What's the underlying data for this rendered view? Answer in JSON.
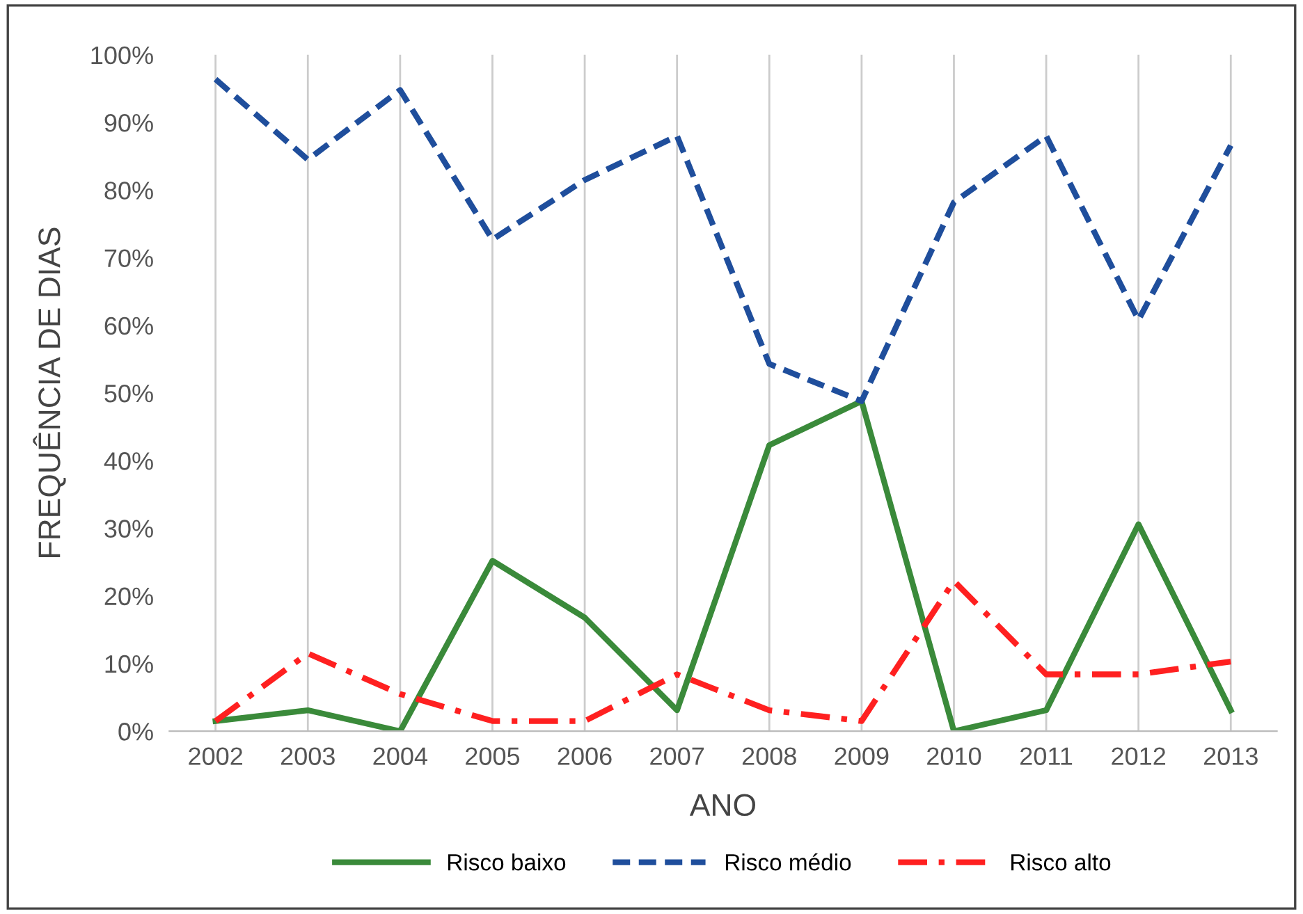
{
  "chart_data": {
    "type": "line",
    "xlabel": "ANO",
    "ylabel": "FREQUÊNCIA DE DIAS",
    "categories": [
      "2002",
      "2003",
      "2004",
      "2005",
      "2006",
      "2007",
      "2008",
      "2009",
      "2010",
      "2011",
      "2012",
      "2013"
    ],
    "series": [
      {
        "name": "Risco baixo",
        "color": "#3a8a3a",
        "line_style": "solid",
        "values": [
          1.5,
          3.1,
          0,
          25.2,
          16.8,
          3.1,
          42.3,
          48.8,
          0,
          3.1,
          30.6,
          3.1
        ]
      },
      {
        "name": "Risco médio",
        "color": "#1f4e9c",
        "line_style": "dashed",
        "values": [
          96.4,
          84.5,
          94.8,
          72.7,
          81.5,
          88,
          54.3,
          48.8,
          78.2,
          88,
          60.8,
          86.6
        ]
      },
      {
        "name": "Risco alto",
        "color": "#ff2020",
        "line_style": "dashdot",
        "values": [
          1.5,
          11.5,
          5.5,
          1.5,
          1.5,
          8.4,
          3.1,
          1.5,
          22.2,
          8.4,
          8.4,
          10.3
        ]
      }
    ],
    "ylim": [
      0,
      100
    ],
    "yticks": [
      {
        "value": 0,
        "label": "0%"
      },
      {
        "value": 10,
        "label": "10%"
      },
      {
        "value": 20,
        "label": "20%"
      },
      {
        "value": 30,
        "label": "30%"
      },
      {
        "value": 40,
        "label": "40%"
      },
      {
        "value": 50,
        "label": "50%"
      },
      {
        "value": 60,
        "label": "60%"
      },
      {
        "value": 70,
        "label": "70%"
      },
      {
        "value": 80,
        "label": "80%"
      },
      {
        "value": 90,
        "label": "90%"
      },
      {
        "value": 100,
        "label": "100%"
      }
    ],
    "grid": "x",
    "legend": "bottom",
    "marker": "none"
  }
}
